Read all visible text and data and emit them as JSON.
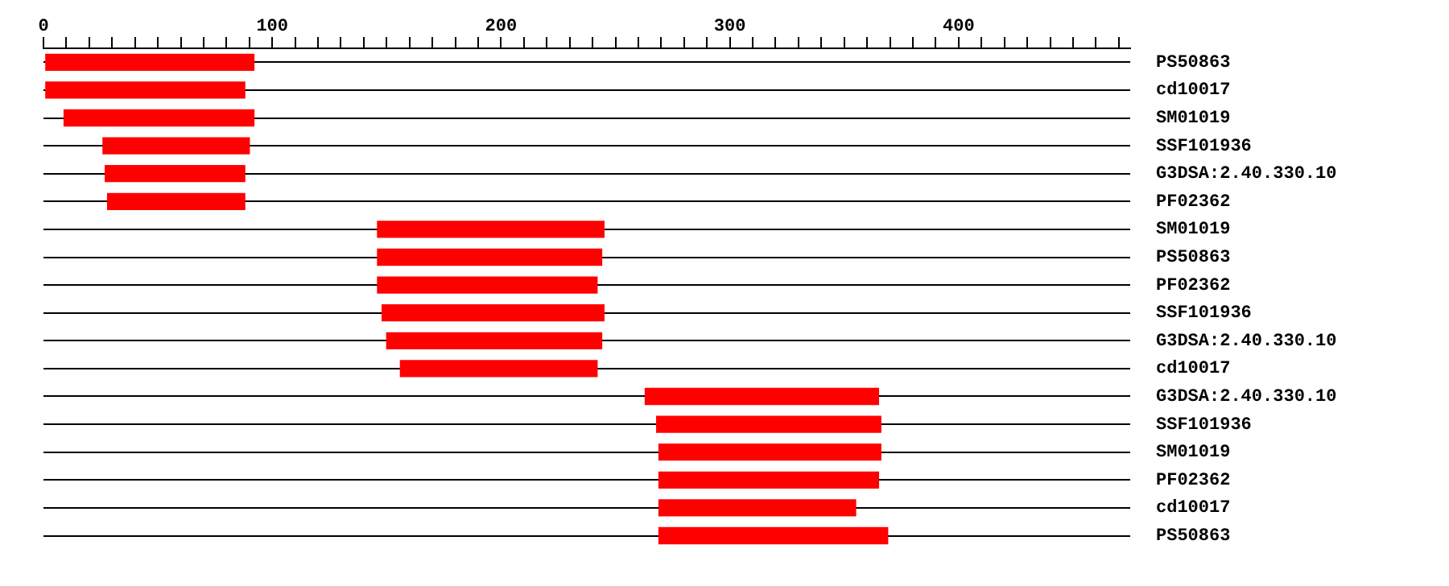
{
  "chart_data": {
    "type": "bar",
    "orientation": "horizontal",
    "grid": "y",
    "legend": false,
    "categories": [
      "PS50863",
      "cd10017",
      "SM01019",
      "SSF101936",
      "G3DSA:2.40.330.10",
      "PF02362",
      "SM01019",
      "PS50863",
      "PF02362",
      "SSF101936",
      "G3DSA:2.40.330.10",
      "cd10017",
      "G3DSA:2.40.330.10",
      "SSF101936",
      "SM01019",
      "PF02362",
      "cd10017",
      "PS50863"
    ],
    "base": [
      1,
      1,
      9,
      26,
      27,
      28,
      146,
      146,
      146,
      148,
      150,
      156,
      263,
      268,
      269,
      269,
      269,
      269
    ],
    "values": [
      91,
      87,
      83,
      64,
      61,
      60,
      99,
      98,
      96,
      97,
      94,
      86,
      102,
      98,
      97,
      96,
      86,
      100
    ],
    "color": "#ff0000",
    "xlim": [
      0,
      475
    ],
    "xticks": [
      0,
      {
        "value": 10,
        "label": null
      },
      {
        "value": 20,
        "label": null
      },
      {
        "value": 30,
        "label": null
      },
      {
        "value": 40,
        "label": null
      },
      {
        "value": 50,
        "label": null
      },
      {
        "value": 60,
        "label": null
      },
      {
        "value": 70,
        "label": null
      },
      {
        "value": 80,
        "label": null
      },
      {
        "value": 90,
        "label": null
      },
      100,
      {
        "value": 110,
        "label": null
      },
      {
        "value": 120,
        "label": null
      },
      {
        "value": 130,
        "label": null
      },
      {
        "value": 140,
        "label": null
      },
      {
        "value": 150,
        "label": null
      },
      {
        "value": 160,
        "label": null
      },
      {
        "value": 170,
        "label": null
      },
      {
        "value": 180,
        "label": null
      },
      {
        "value": 190,
        "label": null
      },
      200,
      {
        "value": 210,
        "label": null
      },
      {
        "value": 220,
        "label": null
      },
      {
        "value": 230,
        "label": null
      },
      {
        "value": 240,
        "label": null
      },
      {
        "value": 250,
        "label": null
      },
      {
        "value": 260,
        "label": null
      },
      {
        "value": 270,
        "label": null
      },
      {
        "value": 280,
        "label": null
      },
      {
        "value": 290,
        "label": null
      },
      300,
      {
        "value": 310,
        "label": null
      },
      {
        "value": 320,
        "label": null
      },
      {
        "value": 330,
        "label": null
      },
      {
        "value": 340,
        "label": null
      },
      {
        "value": 350,
        "label": null
      },
      {
        "value": 360,
        "label": null
      },
      {
        "value": 370,
        "label": null
      },
      {
        "value": 380,
        "label": null
      },
      {
        "value": 390,
        "label": null
      },
      400,
      {
        "value": 410,
        "label": null
      },
      {
        "value": 420,
        "label": null
      },
      {
        "value": 430,
        "label": null
      },
      {
        "value": 440,
        "label": null
      },
      {
        "value": 450,
        "label": null
      },
      {
        "value": 460,
        "label": null
      },
      {
        "value": 470,
        "label": null
      }
    ]
  }
}
